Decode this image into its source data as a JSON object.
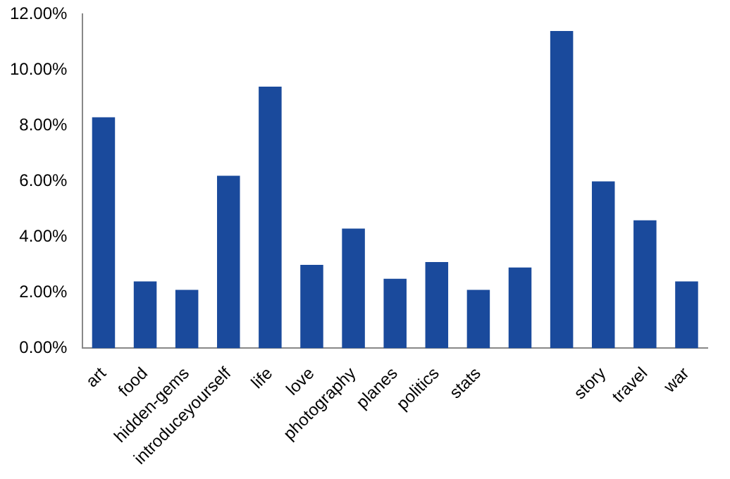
{
  "chart_data": {
    "type": "bar",
    "categories": [
      "art",
      "food",
      "hidden-gems",
      "introduceyourself",
      "life",
      "love",
      "photography",
      "planes",
      "politics",
      "stats",
      null,
      null,
      "story",
      "travel",
      "war"
    ],
    "values": [
      8.3,
      2.4,
      2.1,
      6.2,
      9.4,
      3.0,
      4.3,
      2.5,
      3.1,
      2.1,
      2.9,
      11.4,
      6.0,
      4.6,
      2.4
    ],
    "color": "#1a4a9c",
    "ylim": [
      0,
      12
    ],
    "yticks": [
      {
        "value": 0,
        "label": "0.00%"
      },
      {
        "value": 2,
        "label": "2.00%"
      },
      {
        "value": 4,
        "label": "4.00%"
      },
      {
        "value": 6,
        "label": "6.00%"
      },
      {
        "value": 8,
        "label": "8.00%"
      },
      {
        "value": 10,
        "label": "10.00%"
      },
      {
        "value": 12,
        "label": "12.00%"
      }
    ],
    "grid": false
  }
}
